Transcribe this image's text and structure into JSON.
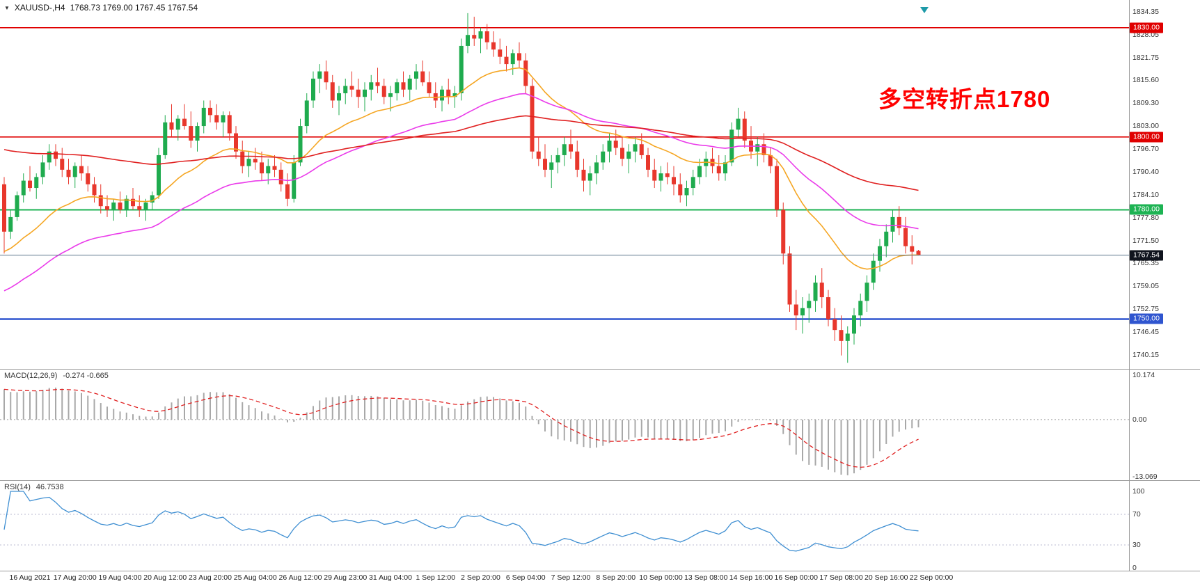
{
  "header": {
    "collapse_icon": "▼",
    "symbol_timeframe": "XAUUSD-,H4",
    "ohlc": "1768.73 1769.00 1767.45 1767.54"
  },
  "annotation": {
    "text": "多空转折点1780",
    "color": "#ff0000"
  },
  "chart_data": [
    {
      "type": "candlestick",
      "title": "XAUUSD- H4",
      "ylim": [
        1740.15,
        1834.35
      ],
      "y_ticks": [
        "1834.35",
        "1828.05",
        "1821.75",
        "1815.60",
        "1809.30",
        "1803.00",
        "1796.70",
        "1790.40",
        "1784.10",
        "1777.80",
        "1771.50",
        "1765.35",
        "1759.05",
        "1752.75",
        "1746.45",
        "1740.15"
      ],
      "x_labels": [
        "16 Aug 2021",
        "17 Aug 20:00",
        "19 Aug 04:00",
        "20 Aug 12:00",
        "23 Aug 20:00",
        "25 Aug 04:00",
        "26 Aug 12:00",
        "29 Aug 23:00",
        "31 Aug 04:00",
        "1 Sep 12:00",
        "2 Sep 20:00",
        "6 Sep 04:00",
        "7 Sep 12:00",
        "8 Sep 20:00",
        "10 Sep 00:00",
        "13 Sep 08:00",
        "14 Sep 16:00",
        "16 Sep 00:00",
        "17 Sep 08:00",
        "20 Sep 16:00",
        "22 Sep 00:00"
      ],
      "bars_per_x_label": 7,
      "up_color": "#1fab4e",
      "down_color": "#e8372c",
      "last_price": 1767.54,
      "last_price_label": "1767.54",
      "horizontal_lines": [
        {
          "price": 1830.0,
          "label": "1830.00",
          "color": "#e00000",
          "width": 1.6
        },
        {
          "price": 1800.0,
          "label": "1800.00",
          "color": "#e00000",
          "width": 1.6
        },
        {
          "price": 1780.0,
          "label": "1780.00",
          "color": "#1db353",
          "width": 2
        },
        {
          "price": 1750.0,
          "label": "1750.00",
          "color": "#2f55cf",
          "width": 2.5
        }
      ],
      "moving_averages": [
        {
          "name": "ma-line-fast-orange",
          "period": 21,
          "seed": 1768,
          "color": "#f5a623"
        },
        {
          "name": "ma-line-mid-magenta",
          "period": 45,
          "seed": 1757,
          "color": "#ea3bea"
        },
        {
          "name": "ma-line-slow-red",
          "period": 100,
          "seed": 1797,
          "color": "#e02020"
        }
      ],
      "ohlc": [
        [
          1787,
          1789,
          1768,
          1774
        ],
        [
          1774,
          1780,
          1772,
          1778
        ],
        [
          1778,
          1785,
          1777,
          1784
        ],
        [
          1784,
          1790,
          1782,
          1788
        ],
        [
          1788,
          1792,
          1785,
          1786
        ],
        [
          1786,
          1790,
          1783,
          1789
        ],
        [
          1789,
          1795,
          1787,
          1793
        ],
        [
          1793,
          1798,
          1791,
          1796
        ],
        [
          1796,
          1798,
          1792,
          1794
        ],
        [
          1794,
          1797,
          1789,
          1791
        ],
        [
          1791,
          1794,
          1787,
          1789
        ],
        [
          1789,
          1793,
          1786,
          1792
        ],
        [
          1792,
          1795,
          1788,
          1790
        ],
        [
          1790,
          1792,
          1785,
          1787
        ],
        [
          1787,
          1789,
          1782,
          1784
        ],
        [
          1784,
          1787,
          1779,
          1781
        ],
        [
          1781,
          1784,
          1778,
          1780
        ],
        [
          1780,
          1783,
          1777,
          1782
        ],
        [
          1782,
          1785,
          1779,
          1780
        ],
        [
          1780,
          1784,
          1778,
          1783
        ],
        [
          1783,
          1786,
          1780,
          1781
        ],
        [
          1781,
          1784,
          1778,
          1780
        ],
        [
          1780,
          1783,
          1777,
          1782
        ],
        [
          1782,
          1785,
          1780,
          1784
        ],
        [
          1784,
          1797,
          1783,
          1795
        ],
        [
          1795,
          1806,
          1794,
          1804
        ],
        [
          1804,
          1809,
          1800,
          1802
        ],
        [
          1802,
          1806,
          1799,
          1805
        ],
        [
          1805,
          1809,
          1802,
          1803
        ],
        [
          1803,
          1807,
          1797,
          1799
        ],
        [
          1799,
          1804,
          1796,
          1803
        ],
        [
          1803,
          1810,
          1801,
          1808
        ],
        [
          1808,
          1810,
          1804,
          1806
        ],
        [
          1806,
          1809,
          1802,
          1804
        ],
        [
          1804,
          1807,
          1800,
          1806
        ],
        [
          1806,
          1807,
          1799,
          1801
        ],
        [
          1801,
          1803,
          1794,
          1796
        ],
        [
          1796,
          1799,
          1790,
          1792
        ],
        [
          1792,
          1796,
          1789,
          1794
        ],
        [
          1794,
          1797,
          1791,
          1793
        ],
        [
          1793,
          1796,
          1788,
          1790
        ],
        [
          1790,
          1794,
          1787,
          1792
        ],
        [
          1792,
          1795,
          1789,
          1791
        ],
        [
          1791,
          1793,
          1785,
          1787
        ],
        [
          1787,
          1790,
          1781,
          1783
        ],
        [
          1783,
          1795,
          1782,
          1793
        ],
        [
          1793,
          1805,
          1792,
          1803
        ],
        [
          1803,
          1812,
          1801,
          1810
        ],
        [
          1810,
          1818,
          1808,
          1816
        ],
        [
          1816,
          1820,
          1812,
          1818
        ],
        [
          1818,
          1821,
          1813,
          1815
        ],
        [
          1815,
          1817,
          1808,
          1810
        ],
        [
          1810,
          1814,
          1806,
          1812
        ],
        [
          1812,
          1816,
          1809,
          1814
        ],
        [
          1814,
          1818,
          1811,
          1813
        ],
        [
          1813,
          1816,
          1808,
          1811
        ],
        [
          1811,
          1815,
          1807,
          1813
        ],
        [
          1813,
          1817,
          1810,
          1815
        ],
        [
          1815,
          1819,
          1812,
          1814
        ],
        [
          1814,
          1816,
          1809,
          1811
        ],
        [
          1811,
          1814,
          1807,
          1812
        ],
        [
          1812,
          1816,
          1810,
          1815
        ],
        [
          1815,
          1818,
          1811,
          1813
        ],
        [
          1813,
          1817,
          1810,
          1816
        ],
        [
          1816,
          1820,
          1813,
          1818
        ],
        [
          1818,
          1821,
          1814,
          1815
        ],
        [
          1815,
          1818,
          1811,
          1812
        ],
        [
          1812,
          1815,
          1808,
          1810
        ],
        [
          1810,
          1814,
          1807,
          1813
        ],
        [
          1813,
          1816,
          1809,
          1811
        ],
        [
          1811,
          1814,
          1808,
          1812
        ],
        [
          1812,
          1827,
          1810,
          1825
        ],
        [
          1825,
          1834,
          1823,
          1828
        ],
        [
          1828,
          1833,
          1825,
          1827
        ],
        [
          1827,
          1830,
          1823,
          1829
        ],
        [
          1829,
          1831,
          1824,
          1826
        ],
        [
          1826,
          1829,
          1822,
          1824
        ],
        [
          1824,
          1827,
          1820,
          1822
        ],
        [
          1822,
          1825,
          1818,
          1820
        ],
        [
          1820,
          1824,
          1817,
          1823
        ],
        [
          1823,
          1826,
          1819,
          1821
        ],
        [
          1821,
          1823,
          1812,
          1814
        ],
        [
          1814,
          1816,
          1794,
          1796
        ],
        [
          1796,
          1800,
          1792,
          1794
        ],
        [
          1794,
          1798,
          1789,
          1791
        ],
        [
          1791,
          1795,
          1786,
          1793
        ],
        [
          1793,
          1797,
          1790,
          1795
        ],
        [
          1795,
          1800,
          1792,
          1798
        ],
        [
          1798,
          1802,
          1794,
          1796
        ],
        [
          1796,
          1799,
          1789,
          1791
        ],
        [
          1791,
          1794,
          1785,
          1788
        ],
        [
          1788,
          1792,
          1784,
          1790
        ],
        [
          1790,
          1795,
          1787,
          1793
        ],
        [
          1793,
          1798,
          1791,
          1796
        ],
        [
          1796,
          1801,
          1793,
          1799
        ],
        [
          1799,
          1802,
          1795,
          1797
        ],
        [
          1797,
          1800,
          1792,
          1794
        ],
        [
          1794,
          1798,
          1790,
          1796
        ],
        [
          1796,
          1800,
          1793,
          1798
        ],
        [
          1798,
          1801,
          1794,
          1795
        ],
        [
          1795,
          1797,
          1789,
          1791
        ],
        [
          1791,
          1794,
          1786,
          1788
        ],
        [
          1788,
          1792,
          1785,
          1790
        ],
        [
          1790,
          1793,
          1787,
          1789
        ],
        [
          1789,
          1792,
          1784,
          1787
        ],
        [
          1787,
          1790,
          1782,
          1784
        ],
        [
          1784,
          1788,
          1781,
          1786
        ],
        [
          1786,
          1791,
          1784,
          1789
        ],
        [
          1789,
          1794,
          1787,
          1792
        ],
        [
          1792,
          1796,
          1789,
          1794
        ],
        [
          1794,
          1797,
          1790,
          1792
        ],
        [
          1792,
          1795,
          1788,
          1790
        ],
        [
          1790,
          1795,
          1788,
          1793
        ],
        [
          1793,
          1804,
          1792,
          1802
        ],
        [
          1802,
          1808,
          1800,
          1805
        ],
        [
          1805,
          1807,
          1797,
          1799
        ],
        [
          1799,
          1803,
          1794,
          1796
        ],
        [
          1796,
          1800,
          1792,
          1798
        ],
        [
          1798,
          1801,
          1793,
          1795
        ],
        [
          1795,
          1797,
          1790,
          1792
        ],
        [
          1792,
          1794,
          1778,
          1780
        ],
        [
          1780,
          1782,
          1765,
          1768
        ],
        [
          1768,
          1770,
          1752,
          1754
        ],
        [
          1754,
          1758,
          1747,
          1751
        ],
        [
          1751,
          1756,
          1746,
          1753
        ],
        [
          1753,
          1757,
          1749,
          1755
        ],
        [
          1755,
          1762,
          1752,
          1760
        ],
        [
          1760,
          1764,
          1753,
          1756
        ],
        [
          1756,
          1758,
          1748,
          1750
        ],
        [
          1750,
          1753,
          1744,
          1747
        ],
        [
          1747,
          1751,
          1740,
          1744
        ],
        [
          1744,
          1748,
          1738,
          1746
        ],
        [
          1746,
          1753,
          1743,
          1751
        ],
        [
          1751,
          1757,
          1748,
          1755
        ],
        [
          1755,
          1762,
          1752,
          1760
        ],
        [
          1760,
          1768,
          1758,
          1766
        ],
        [
          1766,
          1772,
          1763,
          1770
        ],
        [
          1770,
          1776,
          1767,
          1774
        ],
        [
          1774,
          1780,
          1771,
          1778
        ],
        [
          1778,
          1781,
          1773,
          1775
        ],
        [
          1775,
          1778,
          1768,
          1770
        ],
        [
          1770,
          1773,
          1765,
          1768.5
        ],
        [
          1768.73,
          1769,
          1767.45,
          1767.54
        ]
      ]
    },
    {
      "type": "macd",
      "label": "MACD(12,26,9)",
      "values_text": "-0.274 -0.665",
      "fast": 12,
      "slow": 26,
      "signal": 9,
      "seed_fast": 1780,
      "seed_slow": 1772,
      "ylim": [
        -13.069,
        10.174
      ],
      "y_ticks": [
        "10.174",
        "0.00",
        "-13.069"
      ],
      "histogram_color": "#a8a8a8",
      "signal_color": "#e02020"
    },
    {
      "type": "rsi",
      "label": "RSI(14)",
      "value_text": "46.7538",
      "period": 14,
      "ylim": [
        0,
        100
      ],
      "levels": [
        70,
        30
      ],
      "y_ticks": [
        "100",
        "70",
        "30",
        "0"
      ],
      "line_color": "#3f8fd2"
    }
  ]
}
